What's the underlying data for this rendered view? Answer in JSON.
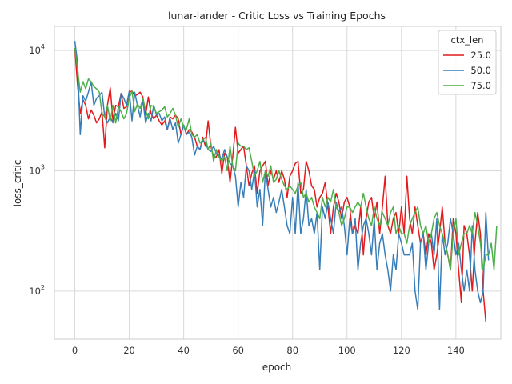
{
  "chart_data": {
    "type": "line",
    "title": "lunar-lander - Critic Loss vs Training Epochs",
    "xlabel": "epoch",
    "ylabel": "loss_critic",
    "xlim": [
      -7.5,
      156.5
    ],
    "ylim_log10": [
      1.6,
      4.2
    ],
    "y_scale": "log",
    "x_ticks": [
      0,
      20,
      40,
      60,
      80,
      100,
      120,
      140
    ],
    "y_ticks": [
      {
        "value": 100,
        "label": "10",
        "exp": "2"
      },
      {
        "value": 1000,
        "label": "10",
        "exp": "3"
      },
      {
        "value": 10000,
        "label": "10",
        "exp": "4"
      }
    ],
    "grid": true,
    "legend": {
      "title": "ctx_len",
      "position": "top-right"
    },
    "series": [
      {
        "name": "25.0",
        "color": "#e41a1c",
        "values": [
          10500,
          5200,
          3000,
          3900,
          3500,
          2700,
          3200,
          2900,
          2500,
          2700,
          3100,
          1550,
          3500,
          4900,
          2600,
          3500,
          3400,
          4400,
          3300,
          3400,
          4500,
          4600,
          4200,
          4300,
          4500,
          4100,
          2900,
          4100,
          3000,
          2700,
          2900,
          2600,
          2400,
          2600,
          2200,
          2800,
          2700,
          2900,
          2700,
          2000,
          2400,
          2000,
          2200,
          2100,
          1900,
          1600,
          1500,
          1900,
          1600,
          2600,
          1600,
          1300,
          1300,
          1500,
          950,
          1400,
          1300,
          800,
          1300,
          2300,
          1400,
          1500,
          1600,
          1100,
          750,
          950,
          1100,
          650,
          1000,
          1100,
          1200,
          750,
          1000,
          850,
          1000,
          800,
          1000,
          850,
          600,
          900,
          1000,
          1150,
          1200,
          650,
          700,
          1200,
          1000,
          750,
          700,
          500,
          600,
          650,
          800,
          500,
          300,
          500,
          650,
          550,
          400,
          550,
          600,
          500,
          300,
          350,
          300,
          500,
          200,
          400,
          550,
          600,
          400,
          550,
          300,
          500,
          900,
          350,
          300,
          400,
          450,
          300,
          500,
          300,
          900,
          400,
          300,
          500,
          350,
          250,
          300,
          200,
          300,
          250,
          150,
          200,
          300,
          500,
          250,
          200,
          150,
          400,
          300,
          150,
          80,
          350,
          300,
          200,
          100,
          250,
          450,
          300,
          100,
          55
        ]
      },
      {
        "name": "50.0",
        "color": "#377eb8",
        "values": [
          12000,
          8000,
          2000,
          4200,
          3800,
          4500,
          5500,
          3500,
          4000,
          4200,
          4500,
          2800,
          2500,
          2800,
          2500,
          3000,
          2600,
          4400,
          4000,
          3500,
          4600,
          2600,
          4500,
          3500,
          2800,
          3900,
          2500,
          3000,
          2600,
          3500,
          2900,
          3000,
          2600,
          2800,
          2200,
          2700,
          2200,
          2500,
          1700,
          2000,
          2400,
          2000,
          2100,
          1900,
          1350,
          1600,
          1500,
          1800,
          1700,
          1500,
          1450,
          1600,
          1400,
          1350,
          1250,
          1500,
          1300,
          1150,
          1100,
          900,
          500,
          800,
          600,
          1100,
          1000,
          700,
          1000,
          500,
          700,
          350,
          1000,
          700,
          500,
          600,
          450,
          550,
          700,
          500,
          350,
          300,
          600,
          300,
          800,
          300,
          400,
          700,
          350,
          400,
          300,
          450,
          150,
          500,
          400,
          550,
          400,
          300,
          550,
          450,
          500,
          350,
          200,
          400,
          300,
          400,
          150,
          250,
          350,
          400,
          300,
          200,
          400,
          150,
          250,
          300,
          200,
          150,
          100,
          200,
          150,
          300,
          250,
          200,
          200,
          200,
          250,
          100,
          70,
          250,
          300,
          150,
          250,
          300,
          200,
          400,
          70,
          300,
          200,
          250,
          400,
          300,
          200,
          250,
          150,
          100,
          150,
          100,
          350,
          150,
          100,
          80,
          100,
          450,
          180
        ]
      },
      {
        "name": "75.0",
        "color": "#4daf4a",
        "values": [
          10500,
          7000,
          4500,
          5500,
          4800,
          5800,
          5500,
          5000,
          4800,
          4500,
          3000,
          2800,
          3500,
          2600,
          3500,
          2500,
          3400,
          3100,
          2700,
          3000,
          4000,
          4600,
          3100,
          3600,
          3300,
          4000,
          3200,
          2700,
          3500,
          3400,
          3000,
          3100,
          3200,
          3400,
          2800,
          3000,
          3300,
          2900,
          2300,
          2700,
          2300,
          2200,
          2700,
          2000,
          1900,
          2000,
          1700,
          1800,
          1900,
          1500,
          1700,
          1200,
          1500,
          1300,
          1200,
          1300,
          1000,
          1600,
          1100,
          1000,
          1700,
          1600,
          1600,
          1500,
          1550,
          1200,
          900,
          1000,
          1200,
          800,
          1000,
          900,
          1100,
          800,
          850,
          1000,
          850,
          750,
          700,
          750,
          700,
          650,
          750,
          800,
          600,
          650,
          550,
          600,
          500,
          450,
          400,
          600,
          500,
          600,
          550,
          700,
          500,
          450,
          350,
          400,
          500,
          500,
          450,
          500,
          550,
          500,
          650,
          500,
          400,
          350,
          500,
          400,
          350,
          450,
          400,
          350,
          450,
          500,
          300,
          350,
          300,
          300,
          250,
          350,
          400,
          450,
          500,
          350,
          300,
          350,
          250,
          300,
          400,
          450,
          350,
          300,
          250,
          200,
          150,
          300,
          400,
          200,
          250,
          300,
          300,
          350,
          300,
          450,
          350,
          250,
          150,
          200,
          200,
          250,
          150,
          350
        ]
      }
    ]
  }
}
